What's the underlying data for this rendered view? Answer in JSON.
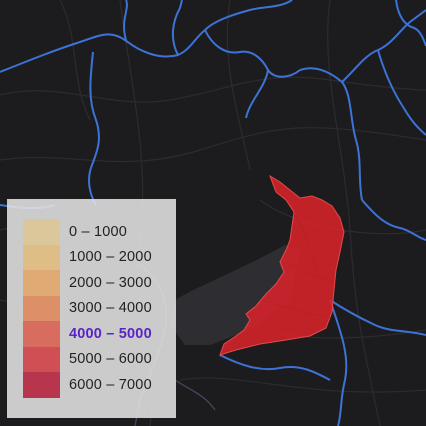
{
  "map": {
    "highlighted_region_color": "#d8232a",
    "background_color": "#1c1c1e",
    "boundary_color": "#3d73d6"
  },
  "legend": {
    "items": [
      {
        "label": "0 – 1000",
        "color": "#dcc79a"
      },
      {
        "label": "1000 – 2000",
        "color": "#dfbd86"
      },
      {
        "label": "2000 – 3000",
        "color": "#e0aa74"
      },
      {
        "label": "3000 – 4000",
        "color": "#dd8f67"
      },
      {
        "label": "4000 – 5000",
        "color": "#d86c5e",
        "active": true
      },
      {
        "label": "5000 – 6000",
        "color": "#cf4f55"
      },
      {
        "label": "6000 – 7000",
        "color": "#b8354e"
      }
    ]
  }
}
